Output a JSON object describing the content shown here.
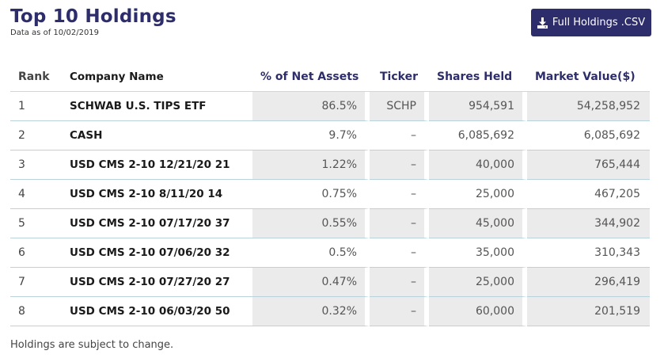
{
  "header": {
    "title": "Top 10 Holdings",
    "subtitle": "Data as of 10/02/2019"
  },
  "download": {
    "label": "Full Holdings .CSV",
    "icon": "download-icon"
  },
  "table": {
    "columns": [
      "Rank",
      "Company Name",
      "% of Net Assets",
      "Ticker",
      "Shares Held",
      "Market Value($)"
    ],
    "rows": [
      {
        "rank": "1",
        "name": "SCHWAB U.S. TIPS ETF",
        "pct": "86.5%",
        "ticker": "SCHP",
        "shares": "954,591",
        "value": "54,258,952"
      },
      {
        "rank": "2",
        "name": "CASH",
        "pct": "9.7%",
        "ticker": "–",
        "shares": "6,085,692",
        "value": "6,085,692"
      },
      {
        "rank": "3",
        "name": "USD CMS 2-10 12/21/20 21",
        "pct": "1.22%",
        "ticker": "–",
        "shares": "40,000",
        "value": "765,444"
      },
      {
        "rank": "4",
        "name": "USD CMS 2-10 8/11/20 14",
        "pct": "0.75%",
        "ticker": "–",
        "shares": "25,000",
        "value": "467,205"
      },
      {
        "rank": "5",
        "name": "USD CMS 2-10 07/17/20 37",
        "pct": "0.55%",
        "ticker": "–",
        "shares": "45,000",
        "value": "344,902"
      },
      {
        "rank": "6",
        "name": "USD CMS 2-10 07/06/20 32",
        "pct": "0.5%",
        "ticker": "–",
        "shares": "35,000",
        "value": "310,343"
      },
      {
        "rank": "7",
        "name": "USD CMS 2-10 07/27/20 27",
        "pct": "0.47%",
        "ticker": "–",
        "shares": "25,000",
        "value": "296,419"
      },
      {
        "rank": "8",
        "name": "USD CMS 2-10 06/03/20 50",
        "pct": "0.32%",
        "ticker": "–",
        "shares": "60,000",
        "value": "201,519"
      }
    ]
  },
  "footnote": "Holdings are subject to change.",
  "colors": {
    "brand": "#2e2d6b",
    "shaded_cell": "#ebebeb",
    "row_divider": "#b9d3dc"
  }
}
